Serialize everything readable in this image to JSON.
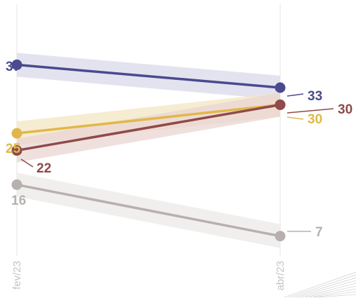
{
  "chart_data": {
    "type": "line",
    "x": [
      "fev/23",
      "abr/23"
    ],
    "ylim": [
      5,
      40
    ],
    "grid": "vertical",
    "series": [
      {
        "values": [
          37,
          33
        ],
        "color": "#4a4a8f",
        "band_color": "#d9d9ea"
      },
      {
        "values": [
          25,
          30
        ],
        "color": "#e0b84a",
        "band_color": "#f3e6c2"
      },
      {
        "values": [
          22,
          30
        ],
        "color": "#8f4a4a",
        "band_color": "#e9d6d3"
      },
      {
        "values": [
          16,
          7
        ],
        "color": "#b8b0ae",
        "band_color": "#ece9e8"
      }
    ]
  }
}
